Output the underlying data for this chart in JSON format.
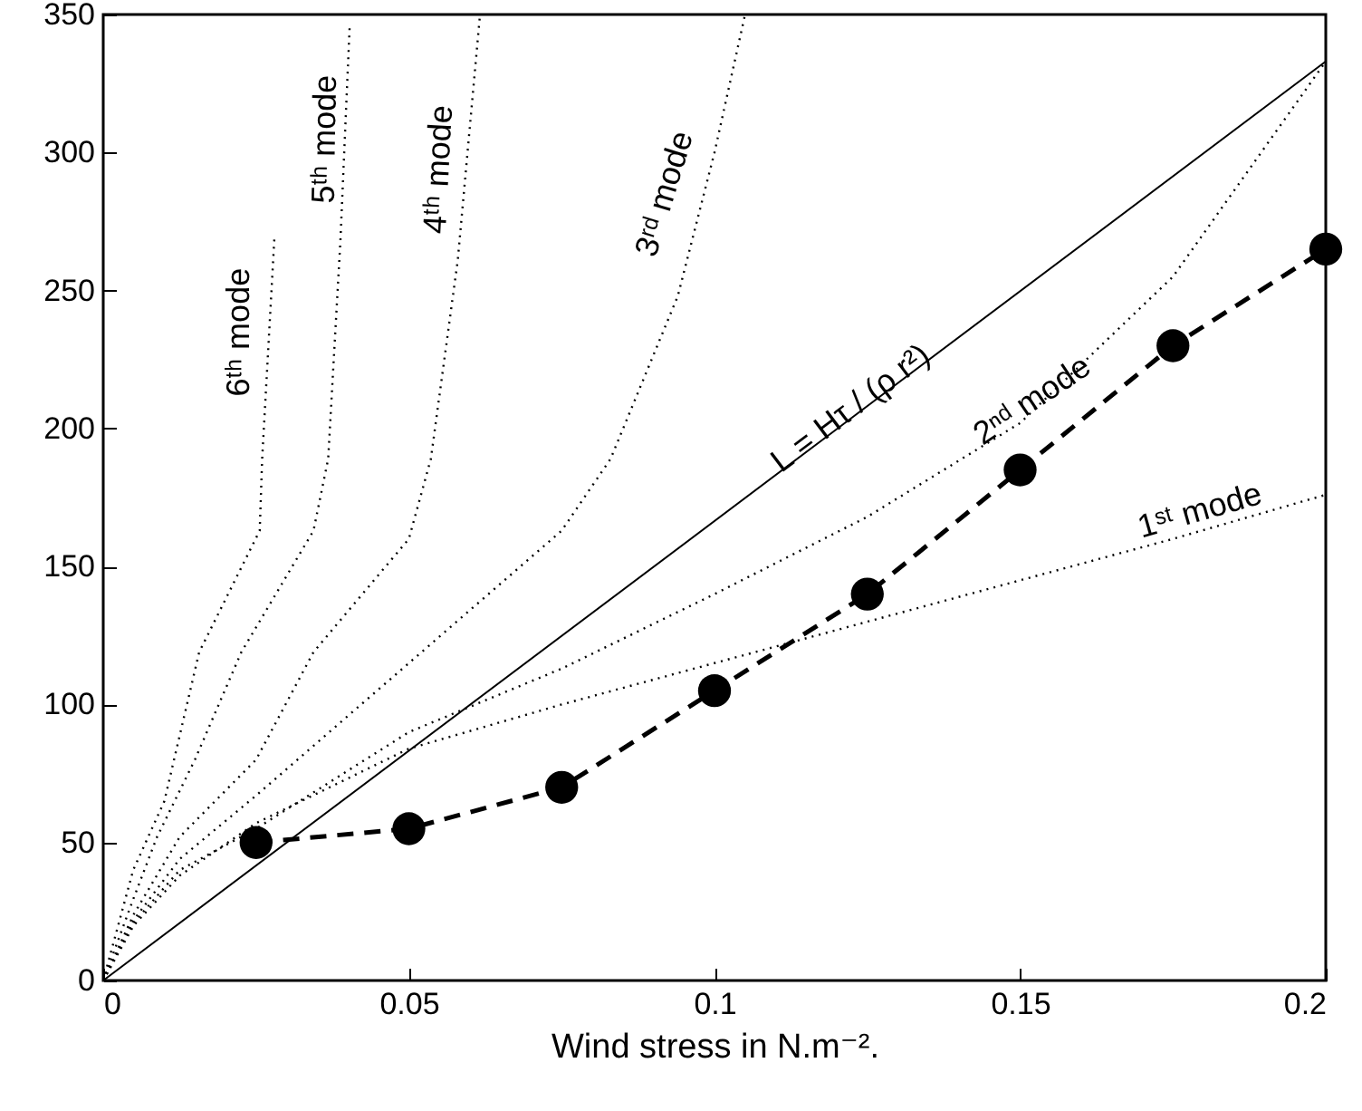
{
  "chart_data": {
    "type": "line",
    "xlabel": "Wind stress in N.m⁻².",
    "xlim": [
      0,
      0.2
    ],
    "xticks": [
      0,
      0.05,
      0.1,
      0.15,
      0.2
    ],
    "ylim": [
      0,
      350
    ],
    "yticks": [
      0,
      50,
      100,
      150,
      200,
      250,
      300,
      350
    ],
    "grid": false,
    "series": [
      {
        "name": "L = Hτ / (ρ r²)",
        "color": "#000000",
        "line_style": "solid",
        "marker": "none",
        "x": [
          0,
          0.12,
          0.2
        ],
        "values": [
          0,
          199.8,
          333
        ]
      },
      {
        "name": "1ˢᵗ mode",
        "color": "#000000",
        "line_style": "dotted",
        "marker": "none",
        "x": [
          0,
          0.005,
          0.0125,
          0.025,
          0.05,
          0.075,
          0.1,
          0.125,
          0.15,
          0.175,
          0.2
        ],
        "values": [
          0,
          20,
          38,
          57,
          84,
          100,
          115,
          130,
          145,
          160,
          176
        ]
      },
      {
        "name": "2ⁿᵈ mode",
        "color": "#000000",
        "line_style": "dotted",
        "marker": "none",
        "x": [
          0,
          0.005,
          0.0125,
          0.025,
          0.05,
          0.075,
          0.1,
          0.125,
          0.15,
          0.175,
          0.2
        ],
        "values": [
          0,
          21,
          40,
          55,
          90,
          113,
          140,
          168,
          202,
          255,
          333
        ]
      },
      {
        "name": "3ʳᵈ mode",
        "color": "#000000",
        "line_style": "dotted",
        "marker": "none",
        "x": [
          0,
          0.005,
          0.0125,
          0.025,
          0.05,
          0.075,
          0.083,
          0.094,
          0.1,
          0.105
        ],
        "values": [
          0,
          22,
          44,
          67,
          115,
          163,
          189,
          248,
          300,
          350
        ]
      },
      {
        "name": "4ᵗʰ mode",
        "color": "#000000",
        "line_style": "dotted",
        "marker": "none",
        "x": [
          0,
          0.005,
          0.0125,
          0.025,
          0.0344,
          0.05,
          0.0536,
          0.058,
          0.0616
        ],
        "values": [
          0,
          24,
          52,
          80,
          119,
          160,
          189,
          261,
          349
        ]
      },
      {
        "name": "5ᵗʰ mode",
        "color": "#000000",
        "line_style": "dotted",
        "marker": "none",
        "x": [
          0,
          0.005,
          0.0088,
          0.015,
          0.0226,
          0.0344,
          0.0368,
          0.0388,
          0.0403
        ],
        "values": [
          0,
          30,
          52,
          80,
          119,
          163,
          189,
          268,
          345
        ]
      },
      {
        "name": "6ᵗʰ mode",
        "color": "#000000",
        "line_style": "dotted",
        "marker": "none",
        "x": [
          0,
          0.0049,
          0.01,
          0.0157,
          0.0256,
          0.026,
          0.028
        ],
        "values": [
          0,
          40,
          65,
          119,
          163,
          189,
          269
        ]
      },
      {
        "color": "#000000",
        "line_style": "dashed",
        "marker": "circle",
        "x": [
          0.025,
          0.05,
          0.075,
          0.1,
          0.125,
          0.15,
          0.175,
          0.2
        ],
        "values": [
          50,
          55,
          70,
          105,
          140,
          185,
          230,
          265
        ]
      }
    ]
  }
}
